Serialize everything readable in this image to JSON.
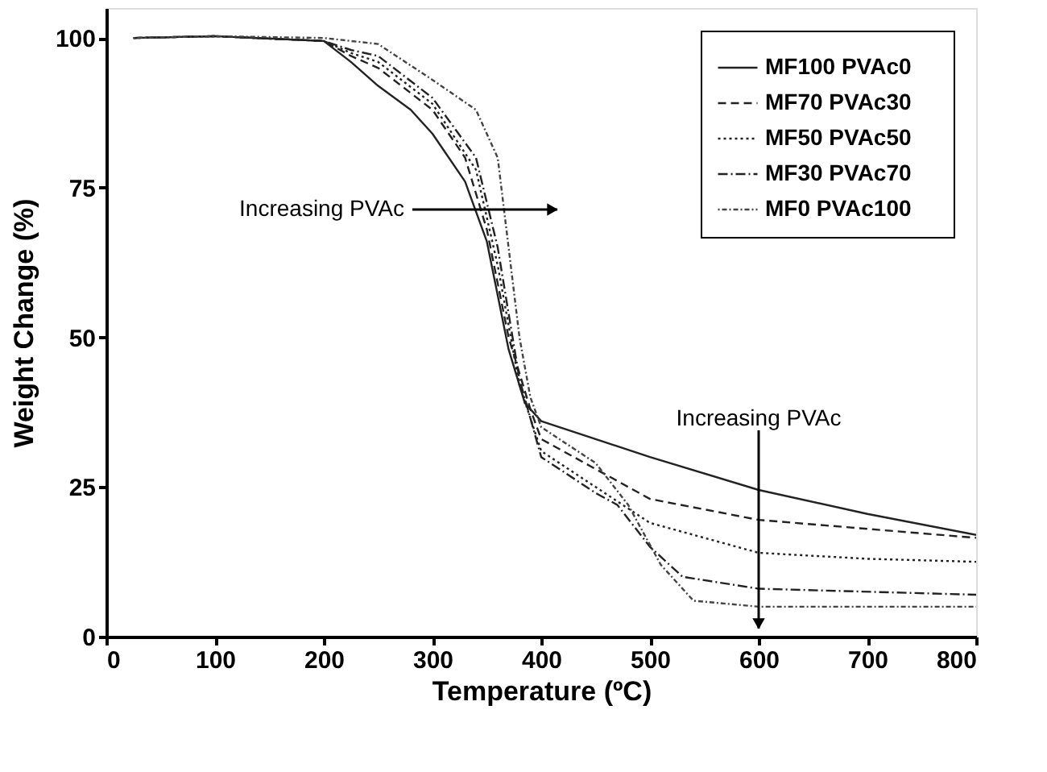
{
  "chart_data": {
    "type": "line",
    "xlabel": "Temperature (ºC)",
    "ylabel": "Weight Change (%)",
    "xlim": [
      0,
      800
    ],
    "ylim": [
      0,
      105
    ],
    "xticks": [
      0,
      100,
      200,
      300,
      400,
      500,
      600,
      700,
      800
    ],
    "yticks": [
      0,
      25,
      50,
      75,
      100
    ],
    "grid": false,
    "legend": "top right",
    "marker": "none",
    "annotations": [
      "Increasing PVAc",
      "Increasing PVAc"
    ],
    "series": [
      {
        "name": "MF100 PVAc0",
        "color": "#222222",
        "line_style": "solid",
        "x": [
          25,
          100,
          200,
          225,
          250,
          280,
          300,
          330,
          350,
          370,
          385,
          400,
          450,
          500,
          600,
          700,
          800
        ],
        "values": [
          100,
          100.3,
          99.5,
          96,
          92,
          88,
          84,
          76,
          66,
          48,
          39,
          36,
          33,
          30,
          24.5,
          20.5,
          17
        ]
      },
      {
        "name": "MF70   PVAc30",
        "color": "#222222",
        "line_style": "dashed",
        "x": [
          25,
          100,
          200,
          225,
          250,
          300,
          330,
          350,
          370,
          390,
          400,
          450,
          500,
          600,
          700,
          800
        ],
        "values": [
          100,
          100.3,
          99.5,
          97,
          95,
          88,
          80,
          68,
          50,
          38,
          33,
          28,
          23,
          19.5,
          18,
          16.5
        ]
      },
      {
        "name": "MF50   PVAc50",
        "color": "#222222",
        "line_style": "dotted",
        "x": [
          25,
          100,
          200,
          225,
          250,
          300,
          340,
          360,
          380,
          400,
          450,
          500,
          600,
          700,
          800
        ],
        "values": [
          100,
          100.3,
          99.5,
          97.5,
          96,
          89,
          78,
          62,
          42,
          31,
          25,
          19,
          14,
          13,
          12.5
        ]
      },
      {
        "name": "MF30   PVAc70",
        "color": "#222222",
        "line_style": "dashed",
        "x": [
          25,
          100,
          200,
          225,
          250,
          300,
          340,
          360,
          380,
          400,
          450,
          470,
          500,
          530,
          600,
          800
        ],
        "values": [
          100,
          100.3,
          99.5,
          98,
          97,
          90,
          80,
          65,
          43,
          30,
          24,
          22,
          15,
          10,
          8,
          7
        ]
      },
      {
        "name": "MF0     PVAc100",
        "color": "#444444",
        "line_style": "dotted",
        "x": [
          25,
          100,
          200,
          250,
          300,
          340,
          360,
          370,
          380,
          390,
          400,
          450,
          480,
          510,
          540,
          600,
          800
        ],
        "values": [
          100,
          100.3,
          100,
          99,
          93,
          88,
          80,
          65,
          50,
          40,
          35,
          29,
          22,
          12,
          6,
          5,
          5
        ]
      }
    ]
  }
}
